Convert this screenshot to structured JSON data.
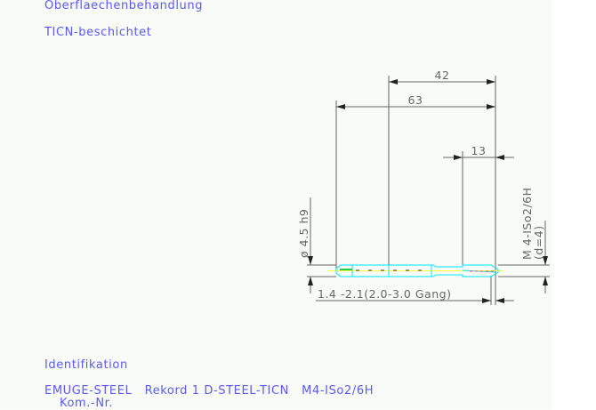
{
  "header": {
    "surface_label": "Oberflaechenbehandlung",
    "surface_value": "TICN-beschichtet"
  },
  "drawing": {
    "dim_total_shank": "42",
    "dim_total_length": "63",
    "dim_thread_length": "13",
    "dim_diameter": "ø 4.5 h9",
    "thread_designation": "M 4-ISo2/6H",
    "thread_diameter": "(d=4)",
    "chamfer_note": "1.4 -2.1(2.0-3.0 Gang)",
    "colors": {
      "dimension": "#666666",
      "tool_outline": "#00e5ff",
      "centerline": "#ffff33",
      "thread": "#ff5050",
      "text": "#5a5af0"
    }
  },
  "footer": {
    "ident_label": "Identifikation",
    "ident_value": "EMUGE-STEEL   Rekord 1 D-STEEL-TICN   M4-ISo2/6H",
    "kom_label": "Kom.-Nr."
  }
}
